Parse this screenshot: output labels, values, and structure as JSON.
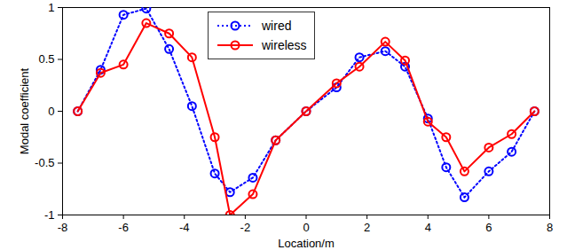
{
  "chart_data": {
    "type": "line",
    "x_label": "Location/m",
    "y_label": "Modal coefficient",
    "x": [
      -7.5,
      -6.75,
      -6,
      -5.25,
      -4.5,
      -3.75,
      -3,
      -2.5,
      -1.75,
      -1,
      0,
      1,
      1.75,
      2.6,
      3.25,
      4,
      4.6,
      5.2,
      6,
      6.75,
      7.5
    ],
    "series": [
      {
        "name": "wired",
        "color": "#0000ff",
        "marker": "circle",
        "line_style": "dotted",
        "values": [
          0,
          0.4,
          0.93,
          0.99,
          0.6,
          0.05,
          -0.6,
          -0.78,
          -0.64,
          -0.28,
          0,
          0.23,
          0.52,
          0.58,
          0.43,
          -0.07,
          -0.54,
          -0.83,
          -0.58,
          -0.39,
          0
        ]
      },
      {
        "name": "wireless",
        "color": "#ff0000",
        "marker": "circle",
        "line_style": "solid",
        "values": [
          0,
          0.37,
          0.45,
          0.85,
          0.75,
          0.52,
          -0.25,
          -1,
          -0.8,
          -0.28,
          0,
          0.27,
          0.43,
          0.67,
          0.49,
          -0.1,
          -0.25,
          -0.58,
          -0.35,
          -0.22,
          0
        ]
      }
    ],
    "xlim": [
      -8,
      8
    ],
    "xticks": [
      -8,
      -6,
      -4,
      -2,
      0,
      2,
      4,
      6,
      8
    ],
    "ylim": [
      -1,
      1
    ],
    "yticks": [
      -1,
      -0.5,
      0,
      0.5,
      1
    ],
    "grid": false,
    "legend": "top"
  }
}
